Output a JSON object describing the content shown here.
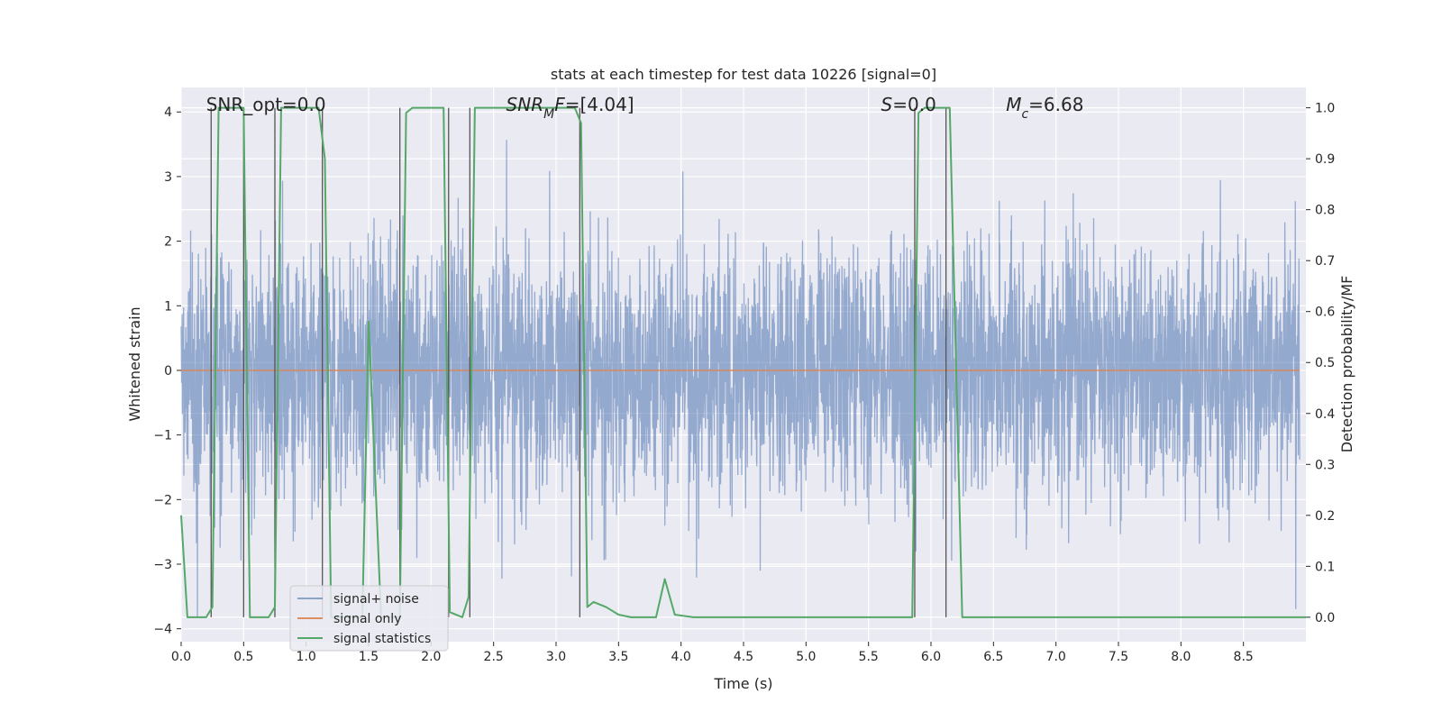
{
  "chart_data": {
    "type": "line",
    "title": "stats at each timestep for test data 10226 [signal=0]",
    "xlabel": "Time (s)",
    "ylabel": "Whitened strain",
    "y2label": "Detection probability/MF",
    "xlim": [
      0.0,
      9.0
    ],
    "ylim": [
      -4.2,
      4.38
    ],
    "y2lim": [
      -0.048,
      1.04
    ],
    "xticks": [
      0.0,
      0.5,
      1.0,
      1.5,
      2.0,
      2.5,
      3.0,
      3.5,
      4.0,
      4.5,
      5.0,
      5.5,
      6.0,
      6.5,
      7.0,
      7.5,
      8.0,
      8.5
    ],
    "xtick_labels": [
      "0.0",
      "0.5",
      "1.0",
      "1.5",
      "2.0",
      "2.5",
      "3.0",
      "3.5",
      "4.0",
      "4.5",
      "5.0",
      "5.5",
      "6.0",
      "6.5",
      "7.0",
      "7.5",
      "8.0",
      "8.5"
    ],
    "yticks": [
      4,
      3,
      2,
      1,
      0,
      -1,
      -2,
      -3,
      -4
    ],
    "ytick_labels": [
      "4",
      "3",
      "2",
      "1",
      "0",
      "−1",
      "−2",
      "−3",
      "−4"
    ],
    "y2ticks": [
      1.0,
      0.9,
      0.8,
      0.7,
      0.6,
      0.5,
      0.4,
      0.3,
      0.2,
      0.1,
      0.0
    ],
    "y2tick_labels": [
      "1.0",
      "0.9",
      "0.8",
      "0.7",
      "0.6",
      "0.5",
      "0.4",
      "0.3",
      "0.2",
      "0.1",
      "0.0"
    ],
    "annotations": [
      {
        "text": "SNR_opt=0.0",
        "x": 0.2,
        "y": 4.02
      },
      {
        "text": "SNR_MF=[4.04]",
        "x": 2.6,
        "y": 4.02
      },
      {
        "text": "S=0.0",
        "x": 5.6,
        "y": 4.02
      },
      {
        "text": "M_c=6.68",
        "x": 6.6,
        "y": 4.02
      }
    ],
    "noise": {
      "rms": 0.95,
      "samples": 4600,
      "seed": 10226
    },
    "vertical_markers": [
      0.24,
      0.5,
      0.75,
      1.13,
      1.75,
      2.14,
      2.31,
      3.19,
      5.87,
      6.12
    ],
    "series": [
      {
        "name": "signal+ noise",
        "color": "#4c72b0",
        "opacity": 0.55,
        "kind": "noise"
      },
      {
        "name": "signal only",
        "color": "#dd8452",
        "kind": "zero"
      },
      {
        "name": "signal statistics",
        "color": "#55a868",
        "axis": "right",
        "x": [
          0.0,
          0.05,
          0.1,
          0.2,
          0.25,
          0.3,
          0.5,
          0.55,
          0.7,
          0.75,
          0.8,
          1.1,
          1.15,
          1.2,
          1.25,
          1.45,
          1.5,
          1.6,
          1.7,
          1.75,
          1.8,
          1.85,
          2.1,
          2.15,
          2.25,
          2.3,
          2.35,
          3.15,
          3.2,
          3.25,
          3.3,
          3.4,
          3.5,
          3.6,
          3.8,
          3.87,
          3.95,
          4.1,
          4.9,
          5.85,
          5.9,
          5.95,
          6.15,
          6.25,
          9.0
        ],
        "y": [
          0.2,
          0.0,
          0.0,
          0.0,
          0.02,
          1.0,
          1.0,
          0.0,
          0.0,
          0.02,
          1.0,
          1.0,
          0.9,
          0.0,
          0.0,
          0.0,
          0.58,
          0.0,
          0.0,
          0.0,
          0.99,
          1.0,
          1.0,
          0.01,
          0.0,
          0.04,
          1.0,
          1.0,
          0.97,
          0.02,
          0.03,
          0.02,
          0.005,
          0.0,
          0.0,
          0.075,
          0.005,
          0.0,
          0.0,
          0.0,
          0.99,
          1.0,
          1.0,
          0.0,
          0.0
        ]
      }
    ],
    "legend": {
      "location": "lower-left",
      "entries": [
        "signal+ noise",
        "signal only",
        "signal statistics"
      ]
    }
  }
}
